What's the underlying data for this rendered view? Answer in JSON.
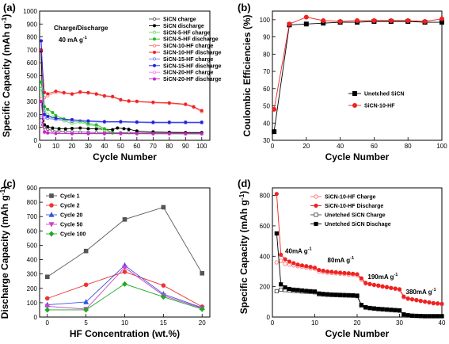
{
  "chart_data": [
    {
      "panel": "(a)",
      "type": "line",
      "xlabel": "Cycle Number",
      "ylabel": "Specific Capacity (mAh g-1)",
      "ylabel_main": "Specific Capacity (mAh g",
      "ylabel_sup": "-1",
      "ylabel_close": ")",
      "annotation_1": "Charge/Discharge",
      "annotation_2_main": "40 mA g",
      "annotation_2_sup": "-1",
      "xlim": [
        0,
        105
      ],
      "ylim": [
        0,
        1000
      ],
      "xticks": [
        0,
        10,
        20,
        30,
        40,
        50,
        60,
        70,
        80,
        90,
        100
      ],
      "yticks": [
        0,
        100,
        200,
        300,
        400,
        500,
        600,
        700,
        800,
        900,
        1000
      ],
      "legend_position": "top-right",
      "series": [
        {
          "name": "SiCN charge",
          "color": "#555555",
          "marker": "open-circle",
          "x": [
            1,
            2,
            3,
            5,
            8,
            12,
            16,
            20,
            25,
            30,
            35,
            40,
            45,
            50,
            55,
            60,
            70,
            80,
            90,
            100
          ],
          "values": [
            160,
            120,
            100,
            85,
            75,
            70,
            68,
            66,
            64,
            62,
            60,
            60,
            59,
            58,
            58,
            57,
            57,
            56,
            56,
            56
          ]
        },
        {
          "name": "SiCN discharge",
          "color": "#000000",
          "marker": "filled-circle",
          "x": [
            1,
            2,
            3,
            5,
            8,
            12,
            16,
            20,
            25,
            30,
            35,
            40,
            45,
            48,
            52,
            55,
            60,
            70,
            80,
            90,
            100
          ],
          "values": [
            690,
            150,
            120,
            105,
            95,
            90,
            88,
            92,
            95,
            90,
            88,
            85,
            82,
            95,
            90,
            85,
            72,
            65,
            62,
            60,
            60
          ]
        },
        {
          "name": "SiCN-5-HF charge",
          "color": "#66dd66",
          "marker": "open-circle",
          "x": [
            1,
            3,
            5,
            8,
            10,
            15,
            20,
            25,
            30,
            35,
            40,
            45,
            50,
            60,
            70,
            80,
            90,
            100
          ],
          "values": [
            400,
            230,
            200,
            180,
            170,
            150,
            130,
            140,
            120,
            110,
            80,
            55,
            52,
            50,
            50,
            50,
            49,
            48
          ]
        },
        {
          "name": "SiCN-5-HF discharge",
          "color": "#22bb22",
          "marker": "filled-circle",
          "x": [
            1,
            3,
            5,
            8,
            10,
            15,
            20,
            25,
            30,
            35,
            40,
            45,
            50,
            60,
            70,
            80,
            90,
            100
          ],
          "values": [
            450,
            260,
            240,
            215,
            190,
            165,
            145,
            150,
            130,
            120,
            90,
            58,
            55,
            52,
            52,
            51,
            50,
            50
          ]
        },
        {
          "name": "SiCN-10-HF charge",
          "color": "#ff7777",
          "marker": "open-circle",
          "x": [
            1,
            3,
            5,
            10,
            15,
            20,
            25,
            30,
            35,
            40,
            45,
            50,
            55,
            60,
            70,
            80,
            90,
            95,
            100
          ],
          "values": [
            320,
            330,
            345,
            370,
            365,
            355,
            370,
            365,
            355,
            340,
            335,
            310,
            300,
            298,
            290,
            285,
            275,
            255,
            220
          ]
        },
        {
          "name": "SiCN-10-HF discharge",
          "color": "#ee2222",
          "marker": "filled-circle",
          "x": [
            1,
            3,
            5,
            10,
            15,
            20,
            25,
            30,
            35,
            40,
            45,
            50,
            55,
            60,
            70,
            80,
            90,
            95,
            100
          ],
          "values": [
            700,
            370,
            360,
            380,
            370,
            360,
            375,
            370,
            360,
            345,
            340,
            315,
            305,
            302,
            295,
            290,
            280,
            260,
            230
          ]
        },
        {
          "name": "SiCN-15-HF charge",
          "color": "#7777ff",
          "marker": "open-circle",
          "x": [
            1,
            3,
            5,
            10,
            20,
            30,
            40,
            50,
            60,
            70,
            80,
            90,
            100
          ],
          "values": [
            180,
            175,
            170,
            160,
            150,
            145,
            140,
            140,
            138,
            135,
            135,
            135,
            135
          ]
        },
        {
          "name": "SiCN-15-HF discharge",
          "color": "#2222dd",
          "marker": "filled-circle",
          "x": [
            1,
            3,
            5,
            10,
            20,
            30,
            40,
            50,
            60,
            70,
            80,
            90,
            100
          ],
          "values": [
            770,
            200,
            185,
            170,
            160,
            150,
            145,
            145,
            142,
            140,
            140,
            140,
            140
          ]
        },
        {
          "name": "SiCN-20-HF charge",
          "color": "#ff77ff",
          "marker": "open-circle",
          "x": [
            1,
            3,
            5,
            10,
            20,
            30,
            40,
            50,
            60,
            70,
            80,
            90,
            100
          ],
          "values": [
            150,
            60,
            55,
            52,
            50,
            50,
            50,
            50,
            50,
            50,
            50,
            50,
            50
          ]
        },
        {
          "name": "SiCN-20-HF discharge",
          "color": "#cc22cc",
          "marker": "filled-circle",
          "x": [
            1,
            3,
            5,
            10,
            20,
            30,
            40,
            50,
            60,
            70,
            80,
            90,
            100
          ],
          "values": [
            300,
            65,
            58,
            54,
            52,
            52,
            52,
            52,
            52,
            51,
            51,
            51,
            51
          ]
        }
      ]
    },
    {
      "panel": "(b)",
      "type": "line",
      "xlabel": "Cycle Number",
      "ylabel": "Coulombic Efficiencies (%)",
      "xlim": [
        0,
        100
      ],
      "ylim": [
        30,
        105
      ],
      "xticks": [
        0,
        20,
        40,
        60,
        80,
        100
      ],
      "yticks": [
        30,
        40,
        50,
        60,
        70,
        80,
        90,
        100
      ],
      "legend_position": "bottom-right",
      "series": [
        {
          "name": "Unetched SiCN",
          "color": "#000000",
          "marker": "filled-square",
          "x": [
            1,
            10,
            20,
            30,
            40,
            50,
            60,
            70,
            80,
            90,
            100
          ],
          "values": [
            35,
            97,
            97.5,
            98,
            98.5,
            98.5,
            99,
            99,
            99,
            98.5,
            98.5
          ]
        },
        {
          "name": "SiCN-10-HF",
          "color": "#ee2222",
          "marker": "filled-circle",
          "x": [
            1,
            10,
            20,
            30,
            40,
            50,
            60,
            70,
            80,
            90,
            100
          ],
          "values": [
            48,
            97.5,
            101.5,
            99.5,
            99,
            99.5,
            99.5,
            99.5,
            99.5,
            99,
            100.5
          ]
        }
      ]
    },
    {
      "panel": "(c)",
      "type": "line",
      "xlabel": "HF Concentration (wt.%)",
      "ylabel": "Discharge Capacity (mAh g-1)",
      "ylabel_main": "Discharge Capacity (mAh g",
      "ylabel_sup": "-1",
      "ylabel_close": ")",
      "xlim": [
        -1,
        21
      ],
      "ylim": [
        0,
        900
      ],
      "xticks": [
        0,
        5,
        10,
        15,
        20
      ],
      "yticks": [
        0,
        100,
        200,
        300,
        400,
        500,
        600,
        700,
        800,
        900
      ],
      "legend_position": "top-left",
      "series": [
        {
          "name": "Cycle 1",
          "color": "#555555",
          "marker": "filled-square",
          "x": [
            0,
            5,
            10,
            15,
            20
          ],
          "values": [
            280,
            460,
            680,
            765,
            305
          ]
        },
        {
          "name": "Cycle 2",
          "color": "#ee3333",
          "marker": "filled-circle",
          "x": [
            0,
            5,
            10,
            15,
            20
          ],
          "values": [
            130,
            225,
            315,
            220,
            72
          ]
        },
        {
          "name": "Cycle 20",
          "color": "#3355dd",
          "marker": "filled-triangle-up",
          "x": [
            0,
            5,
            10,
            15,
            20
          ],
          "values": [
            85,
            105,
            360,
            160,
            65
          ]
        },
        {
          "name": "Cycle 50",
          "color": "#cc44cc",
          "marker": "filled-triangle-down",
          "x": [
            0,
            5,
            10,
            15,
            20
          ],
          "values": [
            75,
            55,
            345,
            150,
            60
          ]
        },
        {
          "name": "Cycle 100",
          "color": "#22aa22",
          "marker": "filled-diamond",
          "x": [
            0,
            5,
            10,
            15,
            20
          ],
          "values": [
            50,
            50,
            230,
            140,
            55
          ]
        }
      ]
    },
    {
      "panel": "(d)",
      "type": "line",
      "xlabel": "Cycle Number",
      "ylabel": "Specific Capacity (mAh g-1)",
      "ylabel_main": "Specific Capacity (mAh g",
      "ylabel_sup": "-1",
      "ylabel_close": ")",
      "xlim": [
        0,
        40
      ],
      "ylim": [
        0,
        850
      ],
      "xticks": [
        0,
        10,
        20,
        30,
        40
      ],
      "yticks": [
        0,
        200,
        400,
        600,
        800
      ],
      "legend_position": "top-right",
      "annotations": [
        {
          "main": "40mA g",
          "sup": "-1",
          "x": 3,
          "y": 420
        },
        {
          "main": "80mA g",
          "sup": "-1",
          "x": 13,
          "y": 360
        },
        {
          "main": "190mA g",
          "sup": "-1",
          "x": 22.5,
          "y": 250
        },
        {
          "main": "380mA g",
          "sup": "-1",
          "x": 31.5,
          "y": 150
        }
      ],
      "series": [
        {
          "name": "SiCN-10-HF  Charge",
          "color": "#ff6666",
          "marker": "open-circle",
          "x": [
            1,
            2,
            3,
            4,
            5,
            6,
            7,
            8,
            9,
            10,
            11,
            12,
            13,
            14,
            15,
            16,
            17,
            18,
            19,
            20,
            21,
            22,
            23,
            24,
            25,
            26,
            27,
            28,
            29,
            30,
            31,
            32,
            33,
            34,
            35,
            36,
            37,
            38,
            39,
            40
          ],
          "values": [
            360,
            370,
            350,
            345,
            340,
            335,
            330,
            325,
            320,
            318,
            300,
            295,
            292,
            290,
            288,
            285,
            283,
            280,
            278,
            275,
            245,
            220,
            215,
            210,
            205,
            200,
            195,
            190,
            185,
            180,
            130,
            120,
            115,
            110,
            105,
            100,
            95,
            90,
            88,
            85
          ]
        },
        {
          "name": "SiCN-10-HF  Discharge",
          "color": "#ee2222",
          "marker": "filled-circle",
          "x": [
            1,
            2,
            3,
            4,
            5,
            6,
            7,
            8,
            9,
            10,
            11,
            12,
            13,
            14,
            15,
            16,
            17,
            18,
            19,
            20,
            21,
            22,
            23,
            24,
            25,
            26,
            27,
            28,
            29,
            30,
            31,
            32,
            33,
            34,
            35,
            36,
            37,
            38,
            39,
            40
          ],
          "values": [
            810,
            410,
            380,
            365,
            355,
            345,
            340,
            335,
            330,
            325,
            310,
            305,
            300,
            298,
            295,
            292,
            290,
            288,
            285,
            282,
            255,
            225,
            218,
            212,
            208,
            202,
            198,
            192,
            188,
            183,
            135,
            122,
            117,
            112,
            107,
            102,
            97,
            92,
            90,
            87
          ]
        },
        {
          "name": "Unetched SiCN  Charge",
          "color": "#444444",
          "marker": "open-square",
          "x": [
            1,
            2,
            3,
            4,
            5,
            6,
            7,
            8,
            9,
            10,
            11,
            12,
            13,
            14,
            15,
            16,
            17,
            18,
            19,
            20,
            21,
            22,
            23,
            24,
            25,
            26,
            27,
            28,
            29,
            30,
            31,
            32,
            33,
            34,
            35,
            36,
            37,
            38,
            39,
            40
          ],
          "values": [
            170,
            180,
            178,
            175,
            172,
            170,
            168,
            167,
            165,
            163,
            150,
            148,
            146,
            145,
            144,
            143,
            142,
            141,
            140,
            138,
            75,
            62,
            58,
            55,
            52,
            50,
            48,
            46,
            44,
            42,
            15,
            10,
            8,
            7,
            6,
            5,
            5,
            5,
            5,
            5
          ]
        },
        {
          "name": "Unetched SiCN   Dischage",
          "color": "#000000",
          "marker": "filled-square",
          "x": [
            1,
            2,
            3,
            4,
            5,
            6,
            7,
            8,
            9,
            10,
            11,
            12,
            13,
            14,
            15,
            16,
            17,
            18,
            19,
            20,
            21,
            22,
            23,
            24,
            25,
            26,
            27,
            28,
            29,
            30,
            31,
            32,
            33,
            34,
            35,
            36,
            37,
            38,
            39,
            40
          ],
          "values": [
            550,
            215,
            195,
            185,
            180,
            178,
            175,
            172,
            170,
            168,
            155,
            152,
            150,
            148,
            147,
            146,
            145,
            144,
            143,
            141,
            80,
            65,
            60,
            57,
            54,
            52,
            50,
            48,
            46,
            44,
            18,
            12,
            9,
            8,
            7,
            6,
            6,
            6,
            6,
            6
          ]
        }
      ]
    }
  ]
}
